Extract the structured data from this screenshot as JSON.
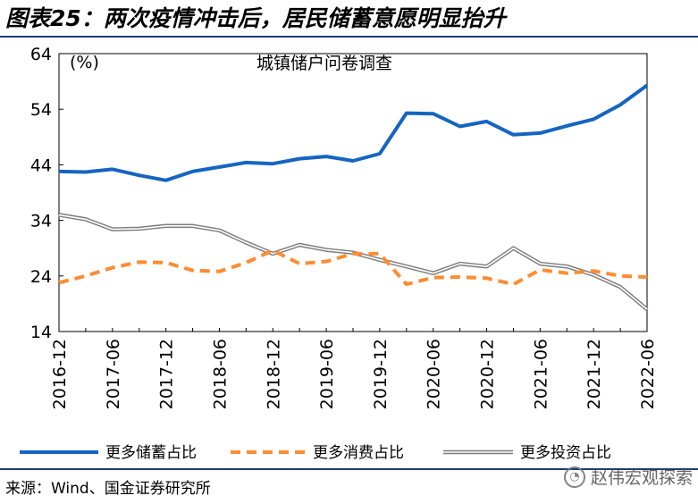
{
  "figure": {
    "title": "图表25：两次疫情冲击后，居民储蓄意愿明显抬升",
    "source": "来源：Wind、国金证券研究所",
    "watermark": "赵伟宏观探索",
    "watermark_icon": "wechat-icon"
  },
  "chart_data": {
    "type": "line",
    "title": "城镇储户问卷调查",
    "unit_label": "(%)",
    "ylim": [
      14,
      64
    ],
    "yticks": [
      14,
      24,
      34,
      44,
      54,
      64
    ],
    "x_tick_labels": [
      "2016-12",
      "2017-06",
      "2017-12",
      "2018-06",
      "2018-12",
      "2019-06",
      "2019-12",
      "2020-06",
      "2020-12",
      "2021-06",
      "2021-12",
      "2022-06"
    ],
    "x": [
      "2016-12",
      "2017-03",
      "2017-06",
      "2017-09",
      "2017-12",
      "2018-03",
      "2018-06",
      "2018-09",
      "2018-12",
      "2019-03",
      "2019-06",
      "2019-09",
      "2019-12",
      "2020-03",
      "2020-06",
      "2020-09",
      "2020-12",
      "2021-03",
      "2021-06",
      "2021-09",
      "2021-12",
      "2022-03",
      "2022-06"
    ],
    "legend_position": "bottom",
    "series": [
      {
        "name": "更多储蓄占比",
        "color": "#1565c0",
        "style": "solid",
        "values": [
          42.8,
          42.7,
          43.2,
          42.1,
          41.2,
          42.8,
          43.6,
          44.4,
          44.2,
          45.1,
          45.5,
          44.7,
          46.0,
          53.3,
          53.2,
          50.9,
          51.8,
          49.4,
          49.7,
          51.0,
          52.2,
          54.8,
          58.3
        ]
      },
      {
        "name": "更多消费占比",
        "color": "#ff8c32",
        "style": "dashed",
        "values": [
          22.8,
          24.0,
          25.5,
          26.5,
          26.4,
          25.0,
          24.8,
          26.4,
          28.6,
          26.2,
          26.6,
          28.0,
          28.0,
          22.5,
          23.7,
          23.8,
          23.6,
          22.5,
          25.1,
          24.5,
          24.9,
          24.0,
          23.8
        ]
      },
      {
        "name": "更多投资占比",
        "color": "#7d7d7d",
        "style": "double",
        "values": [
          35.0,
          34.2,
          32.4,
          32.5,
          33.0,
          33.0,
          32.2,
          30.0,
          28.0,
          29.6,
          28.7,
          28.2,
          26.9,
          25.7,
          24.5,
          26.2,
          25.7,
          29.0,
          26.2,
          25.7,
          24.2,
          22.0,
          18.0
        ]
      }
    ]
  }
}
